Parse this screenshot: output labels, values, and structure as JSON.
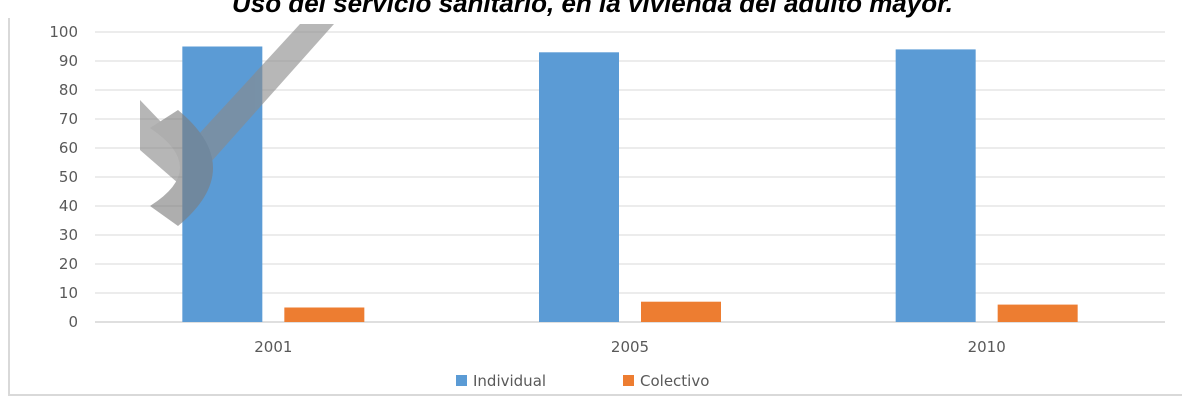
{
  "chart_data": {
    "type": "bar",
    "title": "Uso del servicio sanitario, en la vivienda del adulto mayor.",
    "categories": [
      "2001",
      "2005",
      "2010"
    ],
    "series": [
      {
        "name": "Individual",
        "values": [
          95,
          93,
          94
        ],
        "color": "#5b9bd5"
      },
      {
        "name": "Colectivo",
        "values": [
          5,
          7,
          6
        ],
        "color": "#ed7d31"
      }
    ],
    "ylim": [
      0,
      100
    ],
    "yticks": [
      0,
      10,
      20,
      30,
      40,
      50,
      60,
      70,
      80,
      90,
      100
    ],
    "grid": true,
    "legend_position": "bottom",
    "watermark": "gray-check-mark"
  }
}
